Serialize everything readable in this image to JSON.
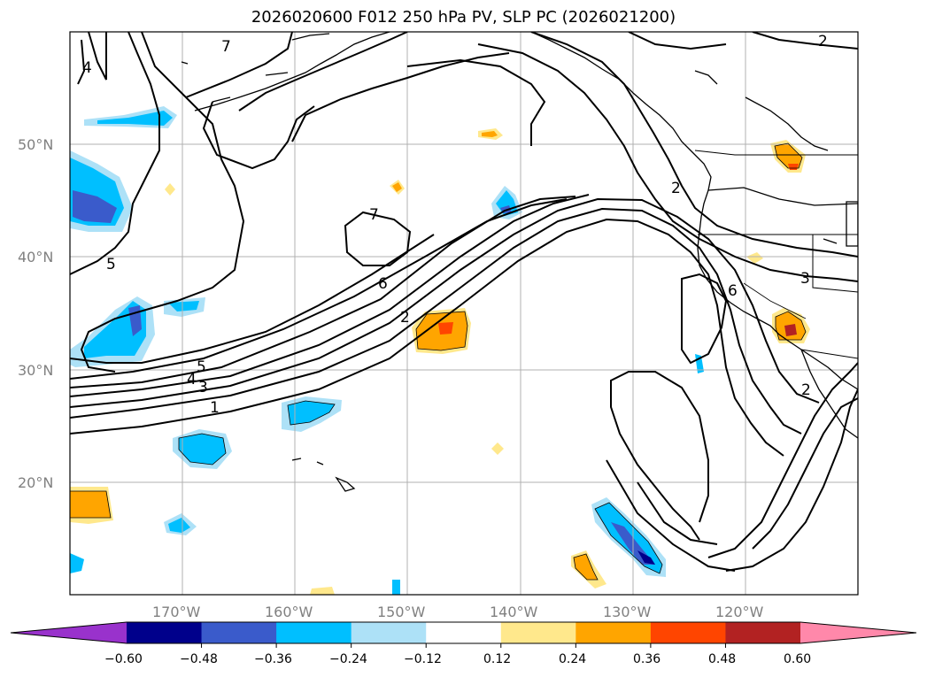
{
  "title": "2026020600 F012 250 hPa PV, SLP PC (2026021200)",
  "map": {
    "lon_range": [
      -180,
      -110
    ],
    "lat_range": [
      10,
      60
    ],
    "lat_ticks": [
      "20°N",
      "30°N",
      "40°N",
      "50°N"
    ],
    "lon_ticks": [
      "170°W",
      "160°W",
      "150°W",
      "140°W",
      "130°W",
      "120°W"
    ],
    "grid": true,
    "contour_labels": [
      "7",
      "4",
      "5",
      "7",
      "6",
      "2",
      "5",
      "4",
      "3",
      "1",
      "2",
      "6",
      "3",
      "2",
      "2"
    ]
  },
  "colorbar": {
    "ticks": [
      "−0.60",
      "−0.48",
      "−0.36",
      "−0.24",
      "−0.12",
      "0.12",
      "0.24",
      "0.36",
      "0.48",
      "0.60"
    ],
    "colors": [
      "#9932CC",
      "#00008B",
      "#3A5BCB",
      "#00BFFF",
      "#ADE1F7",
      "#FFFFFF",
      "#FFE88C",
      "#FFA500",
      "#FF4500",
      "#B22222",
      "#FF88AA"
    ],
    "orientation": "horizontal",
    "extend": "both"
  }
}
